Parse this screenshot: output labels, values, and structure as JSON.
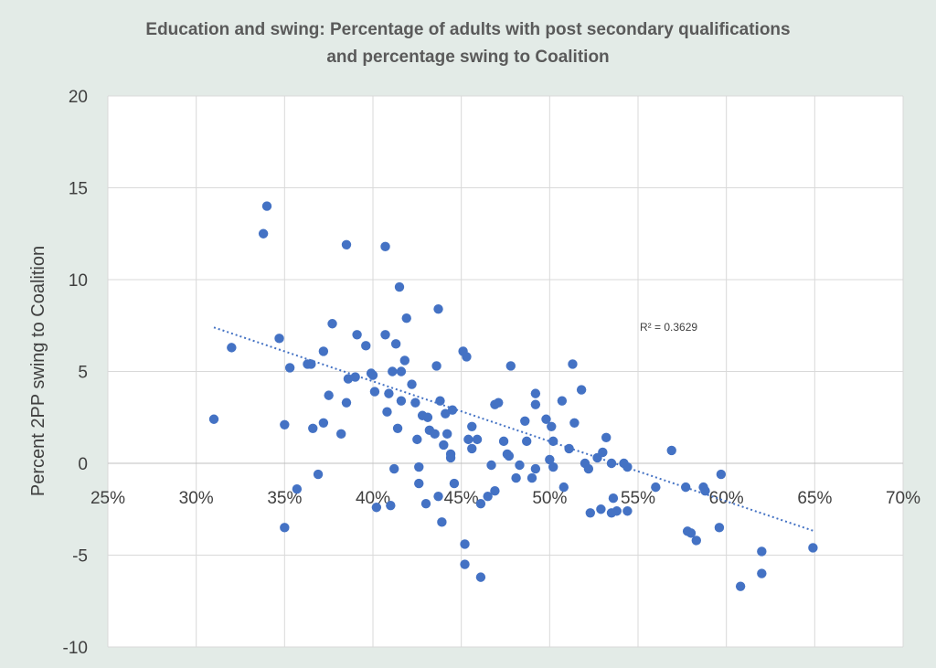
{
  "chart_data": {
    "type": "scatter",
    "title_line1": "Education and swing: Percentage of adults with post secondary qualifications",
    "title_line2": "and percentage swing to Coalition",
    "xlabel": "",
    "ylabel": "Percent 2PP swing to Coalition",
    "xlim": [
      0.25,
      0.7
    ],
    "ylim": [
      -10,
      20
    ],
    "x_ticks": [
      0.25,
      0.3,
      0.35,
      0.4,
      0.45,
      0.5,
      0.55,
      0.6,
      0.65,
      0.7
    ],
    "x_tick_labels": [
      "25%",
      "30%",
      "35%",
      "40%",
      "45%",
      "50%",
      "55%",
      "60%",
      "65%",
      "70%"
    ],
    "y_ticks": [
      -10,
      -5,
      0,
      5,
      10,
      15,
      20
    ],
    "y_tick_labels": [
      "-10",
      "-5",
      "0",
      "5",
      "10",
      "15",
      "20"
    ],
    "grid": true,
    "legend": "none",
    "point_color": "#4472c4",
    "trendline": {
      "x_start": 0.31,
      "y_start": 7.4,
      "x_end": 0.65,
      "y_end": -3.7,
      "r_squared_label": "R² = 0.3629"
    },
    "points": [
      [
        0.31,
        2.4
      ],
      [
        0.32,
        6.3
      ],
      [
        0.338,
        12.5
      ],
      [
        0.34,
        14.0
      ],
      [
        0.347,
        6.8
      ],
      [
        0.35,
        2.1
      ],
      [
        0.35,
        -3.5
      ],
      [
        0.353,
        5.2
      ],
      [
        0.357,
        -1.4
      ],
      [
        0.363,
        5.4
      ],
      [
        0.365,
        5.4
      ],
      [
        0.366,
        1.9
      ],
      [
        0.369,
        -0.6
      ],
      [
        0.372,
        6.1
      ],
      [
        0.372,
        2.2
      ],
      [
        0.375,
        3.7
      ],
      [
        0.377,
        7.6
      ],
      [
        0.382,
        1.6
      ],
      [
        0.385,
        11.9
      ],
      [
        0.385,
        3.3
      ],
      [
        0.386,
        4.6
      ],
      [
        0.39,
        4.7
      ],
      [
        0.391,
        7.0
      ],
      [
        0.396,
        6.4
      ],
      [
        0.399,
        4.9
      ],
      [
        0.4,
        4.8
      ],
      [
        0.401,
        3.9
      ],
      [
        0.402,
        -2.4
      ],
      [
        0.407,
        11.8
      ],
      [
        0.407,
        7.0
      ],
      [
        0.408,
        2.8
      ],
      [
        0.409,
        3.8
      ],
      [
        0.41,
        -2.3
      ],
      [
        0.411,
        5.0
      ],
      [
        0.412,
        -0.3
      ],
      [
        0.413,
        6.5
      ],
      [
        0.414,
        1.9
      ],
      [
        0.415,
        9.6
      ],
      [
        0.416,
        5.0
      ],
      [
        0.416,
        3.4
      ],
      [
        0.418,
        5.6
      ],
      [
        0.419,
        7.9
      ],
      [
        0.422,
        4.3
      ],
      [
        0.424,
        3.3
      ],
      [
        0.425,
        1.3
      ],
      [
        0.426,
        -1.1
      ],
      [
        0.426,
        -0.2
      ],
      [
        0.428,
        2.6
      ],
      [
        0.43,
        -2.2
      ],
      [
        0.431,
        2.5
      ],
      [
        0.432,
        1.8
      ],
      [
        0.435,
        1.6
      ],
      [
        0.436,
        5.3
      ],
      [
        0.437,
        -1.8
      ],
      [
        0.437,
        8.4
      ],
      [
        0.438,
        3.4
      ],
      [
        0.439,
        -3.2
      ],
      [
        0.44,
        1.0
      ],
      [
        0.441,
        2.7
      ],
      [
        0.442,
        1.6
      ],
      [
        0.444,
        0.5
      ],
      [
        0.445,
        2.9
      ],
      [
        0.444,
        0.3
      ],
      [
        0.446,
        -1.1
      ],
      [
        0.451,
        6.1
      ],
      [
        0.452,
        -4.4
      ],
      [
        0.452,
        -5.5
      ],
      [
        0.453,
        5.8
      ],
      [
        0.454,
        1.3
      ],
      [
        0.456,
        0.8
      ],
      [
        0.456,
        2.0
      ],
      [
        0.459,
        1.3
      ],
      [
        0.461,
        -2.2
      ],
      [
        0.461,
        -6.2
      ],
      [
        0.465,
        -1.8
      ],
      [
        0.467,
        -0.1
      ],
      [
        0.469,
        3.2
      ],
      [
        0.469,
        -1.5
      ],
      [
        0.471,
        3.3
      ],
      [
        0.474,
        1.2
      ],
      [
        0.476,
        0.5
      ],
      [
        0.477,
        0.4
      ],
      [
        0.478,
        5.3
      ],
      [
        0.481,
        -0.8
      ],
      [
        0.483,
        -0.1
      ],
      [
        0.486,
        2.3
      ],
      [
        0.487,
        1.2
      ],
      [
        0.49,
        -0.8
      ],
      [
        0.492,
        3.8
      ],
      [
        0.492,
        3.2
      ],
      [
        0.492,
        -0.3
      ],
      [
        0.498,
        2.4
      ],
      [
        0.5,
        0.2
      ],
      [
        0.501,
        2.0
      ],
      [
        0.502,
        1.2
      ],
      [
        0.502,
        -0.2
      ],
      [
        0.507,
        3.4
      ],
      [
        0.508,
        -1.3
      ],
      [
        0.511,
        0.8
      ],
      [
        0.513,
        5.4
      ],
      [
        0.514,
        2.2
      ],
      [
        0.518,
        4.0
      ],
      [
        0.52,
        0.0
      ],
      [
        0.522,
        -0.3
      ],
      [
        0.523,
        -2.7
      ],
      [
        0.527,
        0.3
      ],
      [
        0.529,
        -2.5
      ],
      [
        0.53,
        0.6
      ],
      [
        0.532,
        1.4
      ],
      [
        0.535,
        -2.7
      ],
      [
        0.535,
        0.0
      ],
      [
        0.536,
        -1.9
      ],
      [
        0.538,
        -2.6
      ],
      [
        0.542,
        0.0
      ],
      [
        0.544,
        -0.2
      ],
      [
        0.544,
        -2.6
      ],
      [
        0.56,
        -1.3
      ],
      [
        0.569,
        0.7
      ],
      [
        0.577,
        -1.3
      ],
      [
        0.578,
        -3.7
      ],
      [
        0.58,
        -3.8
      ],
      [
        0.583,
        -4.2
      ],
      [
        0.587,
        -1.3
      ],
      [
        0.588,
        -1.5
      ],
      [
        0.596,
        -3.5
      ],
      [
        0.597,
        -0.6
      ],
      [
        0.608,
        -6.7
      ],
      [
        0.62,
        -4.8
      ],
      [
        0.62,
        -6.0
      ],
      [
        0.649,
        -4.6
      ]
    ]
  }
}
